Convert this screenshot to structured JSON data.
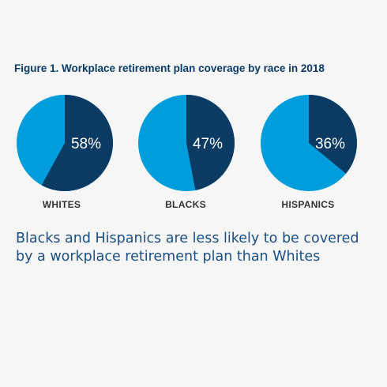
{
  "figure_title": "Figure 1. Workplace retirement plan coverage by race in 2018",
  "caption": "Blacks and Hispanics are less likely to be covered by a workplace retirement plan than Whites",
  "colors": {
    "covered": "#0b3a63",
    "not_covered": "#009ddc",
    "title": "#0b3a66",
    "caption": "#1b4f86",
    "background": "#f6f6f6"
  },
  "chart_data": [
    {
      "type": "pie",
      "category": "WHITES",
      "value": 58,
      "label": "58%"
    },
    {
      "type": "pie",
      "category": "BLACKS",
      "value": 47,
      "label": "47%"
    },
    {
      "type": "pie",
      "category": "HISPANICS",
      "value": 36,
      "label": "36%"
    }
  ]
}
